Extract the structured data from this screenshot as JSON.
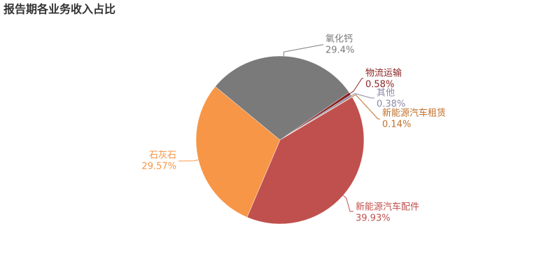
{
  "chart_data": {
    "type": "pie",
    "title": "报告期各业务收入占比",
    "categories": [
      "物流运输",
      "其他",
      "新能源汽车租赁",
      "新能源汽车配件",
      "石灰石",
      "氧化钙"
    ],
    "values": [
      0.58,
      0.38,
      0.14,
      39.93,
      29.57,
      29.4
    ],
    "value_labels": [
      "0.58%",
      "0.38%",
      "0.14%",
      "39.93%",
      "29.57%",
      "29.4%"
    ],
    "colors": [
      "#8b2323",
      "#8e8aa6",
      "#c0702a",
      "#c0504d",
      "#f79646",
      "#7a7a7a"
    ]
  }
}
